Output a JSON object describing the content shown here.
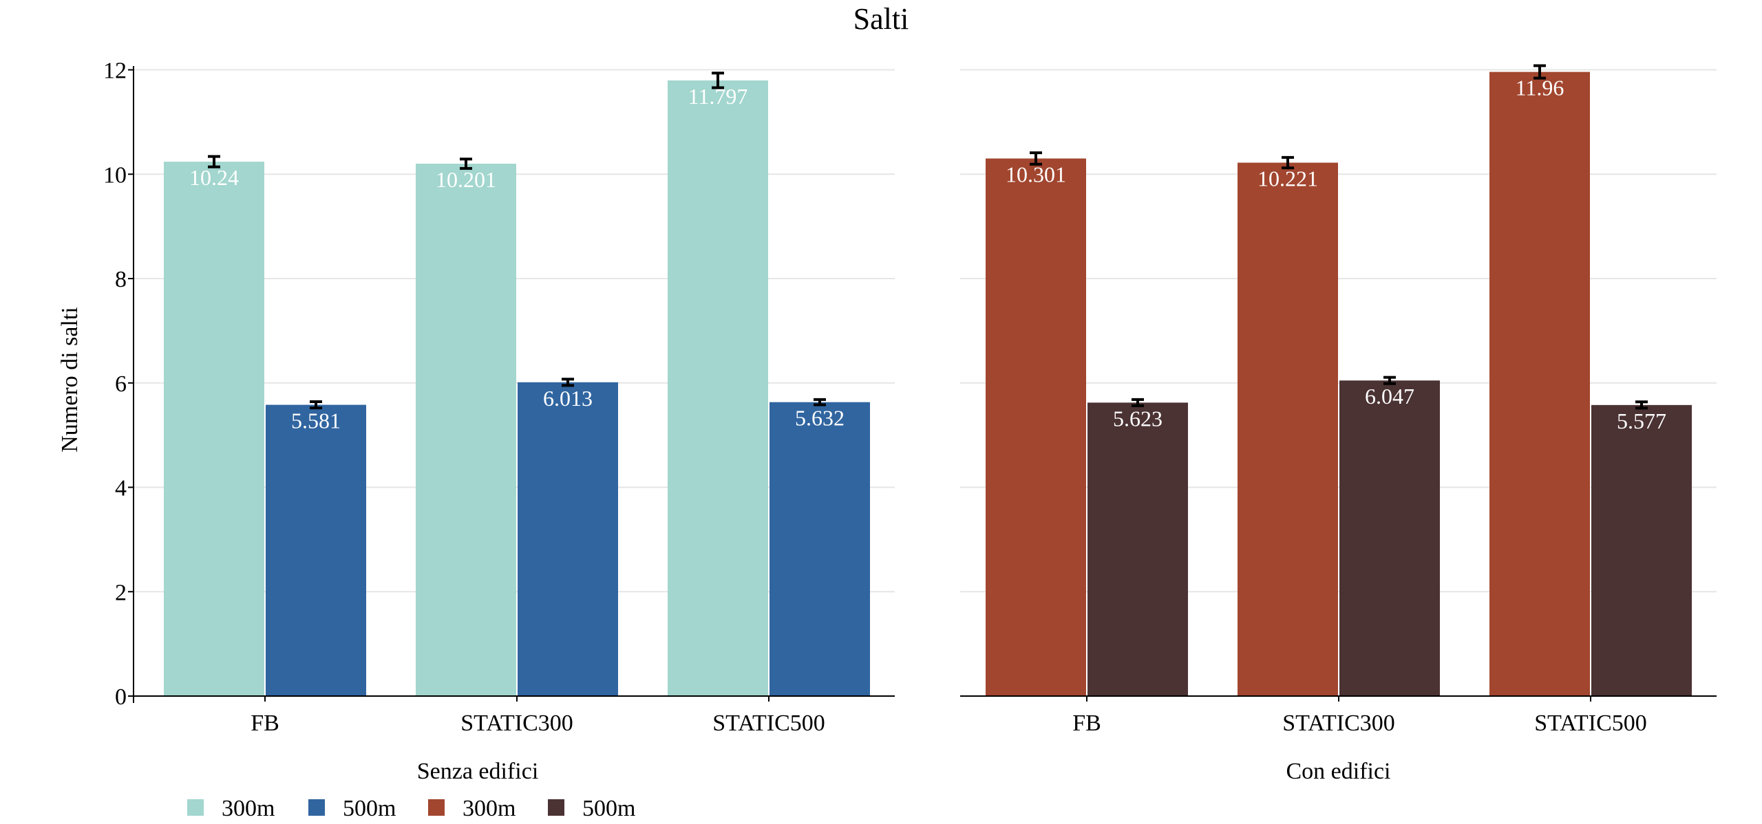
{
  "chart_data": {
    "type": "bar",
    "title": "Salti",
    "ylabel": "Numero di salti",
    "ylim": [
      0,
      12.6
    ],
    "yticks": [
      0,
      2,
      4,
      6,
      8,
      10,
      12
    ],
    "grid": true,
    "legend_position": "bottom-left",
    "colors": {
      "senza_300m": "#a2d6ce",
      "senza_500m": "#3065a0",
      "con_300m": "#a2462f",
      "con_500m": "#4b3233",
      "error_bar": "#000000",
      "axis": "#000000",
      "grid": "#e6e6e6"
    },
    "panels": [
      {
        "xlabel": "Senza edifici",
        "categories": [
          "FB",
          "STATIC300",
          "STATIC500"
        ],
        "series": [
          {
            "name": "300m",
            "color": "#a2d6ce",
            "values": [
              10.24,
              10.201,
              11.797
            ],
            "labels": [
              "10.24",
              "10.201",
              "11.797"
            ],
            "error": [
              0.1,
              0.09,
              0.14
            ]
          },
          {
            "name": "500m",
            "color": "#3065a0",
            "values": [
              5.581,
              6.013,
              5.632
            ],
            "labels": [
              "5.581",
              "6.013",
              "5.632"
            ],
            "error": [
              0.06,
              0.06,
              0.05
            ]
          }
        ]
      },
      {
        "xlabel": "Con edifici",
        "categories": [
          "FB",
          "STATIC300",
          "STATIC500"
        ],
        "series": [
          {
            "name": "300m",
            "color": "#a2462f",
            "values": [
              10.301,
              10.221,
              11.96
            ],
            "labels": [
              "10.301",
              "10.221",
              "11.96"
            ],
            "error": [
              0.11,
              0.1,
              0.12
            ]
          },
          {
            "name": "500m",
            "color": "#4b3233",
            "values": [
              5.623,
              6.047,
              5.577
            ],
            "labels": [
              "5.623",
              "6.047",
              "5.577"
            ],
            "error": [
              0.06,
              0.06,
              0.06
            ]
          }
        ]
      }
    ],
    "legend": [
      {
        "label": "300m",
        "color": "#a2d6ce"
      },
      {
        "label": "500m",
        "color": "#3065a0"
      },
      {
        "label": "300m",
        "color": "#a2462f"
      },
      {
        "label": "500m",
        "color": "#4b3233"
      }
    ]
  }
}
